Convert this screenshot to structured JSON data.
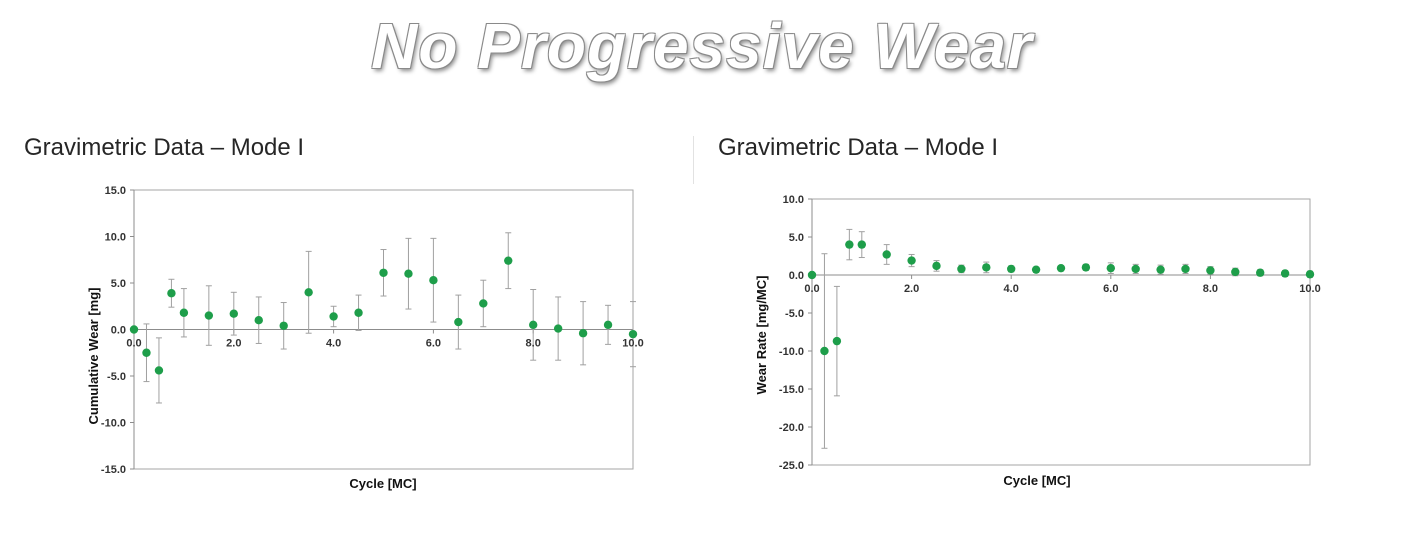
{
  "slide": {
    "title": "No Progressive Wear"
  },
  "chart_data": [
    {
      "type": "scatter",
      "heading": "Gravimetric Data – Mode I",
      "xlabel": "Cycle [MC]",
      "ylabel": "Cumulative Wear [mg]",
      "xlim": [
        0,
        10
      ],
      "ylim": [
        -15,
        15
      ],
      "x_ticks": [
        0,
        2,
        4,
        6,
        8,
        10
      ],
      "x_tick_labels": [
        "0.0",
        "2.0",
        "4.0",
        "6.0",
        "8.0",
        "10.0"
      ],
      "y_ticks": [
        15,
        10,
        5,
        0,
        -5,
        -10,
        -15
      ],
      "y_tick_labels": [
        "15.0",
        "10.0",
        "5.0",
        "0.0",
        "-5.0",
        "-10.0",
        "-15.0"
      ],
      "marker_color": "#1e9e4a",
      "errorbar_color": "#a0a0a0",
      "points": [
        {
          "x": 0.0,
          "y": 0.0,
          "err": 0.0
        },
        {
          "x": 0.25,
          "y": -2.5,
          "err": 3.1
        },
        {
          "x": 0.5,
          "y": -4.4,
          "err": 3.5
        },
        {
          "x": 0.75,
          "y": 3.9,
          "err": 1.5
        },
        {
          "x": 1.0,
          "y": 1.8,
          "err": 2.6
        },
        {
          "x": 1.5,
          "y": 1.5,
          "err": 3.2
        },
        {
          "x": 2.0,
          "y": 1.7,
          "err": 2.3
        },
        {
          "x": 2.5,
          "y": 1.0,
          "err": 2.5
        },
        {
          "x": 3.0,
          "y": 0.4,
          "err": 2.5
        },
        {
          "x": 3.5,
          "y": 4.0,
          "err": 4.4
        },
        {
          "x": 4.0,
          "y": 1.4,
          "err": 1.1
        },
        {
          "x": 4.5,
          "y": 1.8,
          "err": 1.9
        },
        {
          "x": 5.0,
          "y": 6.1,
          "err": 2.5
        },
        {
          "x": 5.5,
          "y": 6.0,
          "err": 3.8
        },
        {
          "x": 6.0,
          "y": 5.3,
          "err": 4.5
        },
        {
          "x": 6.5,
          "y": 0.8,
          "err": 2.9
        },
        {
          "x": 7.0,
          "y": 2.8,
          "err": 2.5
        },
        {
          "x": 7.5,
          "y": 7.4,
          "err": 3.0
        },
        {
          "x": 8.0,
          "y": 0.5,
          "err": 3.8
        },
        {
          "x": 8.5,
          "y": 0.1,
          "err": 3.4
        },
        {
          "x": 9.0,
          "y": -0.4,
          "err": 3.4
        },
        {
          "x": 9.5,
          "y": 0.5,
          "err": 2.1
        },
        {
          "x": 10.0,
          "y": -0.5,
          "err": 3.5
        }
      ]
    },
    {
      "type": "scatter",
      "heading": "Gravimetric Data – Mode I",
      "xlabel": "Cycle [MC]",
      "ylabel": "Wear Rate [mg/MC]",
      "xlim": [
        0,
        10
      ],
      "ylim": [
        -25,
        10
      ],
      "x_ticks": [
        0,
        2,
        4,
        6,
        8,
        10
      ],
      "x_tick_labels": [
        "0.0",
        "2.0",
        "4.0",
        "6.0",
        "8.0",
        "10.0"
      ],
      "y_ticks": [
        10,
        5,
        0,
        -5,
        -10,
        -15,
        -20,
        -25
      ],
      "y_tick_labels": [
        "10.0",
        "5.0",
        "0.0",
        "-5.0",
        "-10.0",
        "-15.0",
        "-20.0",
        "-25.0"
      ],
      "marker_color": "#1e9e4a",
      "errorbar_color": "#a0a0a0",
      "points": [
        {
          "x": 0.0,
          "y": 0.0,
          "err": 0.0
        },
        {
          "x": 0.25,
          "y": -10.0,
          "err": 12.8
        },
        {
          "x": 0.5,
          "y": -8.7,
          "err": 7.2
        },
        {
          "x": 0.75,
          "y": 4.0,
          "err": 2.0
        },
        {
          "x": 1.0,
          "y": 4.0,
          "err": 1.7
        },
        {
          "x": 1.5,
          "y": 2.7,
          "err": 1.3
        },
        {
          "x": 2.0,
          "y": 1.9,
          "err": 0.8
        },
        {
          "x": 2.5,
          "y": 1.2,
          "err": 0.7
        },
        {
          "x": 3.0,
          "y": 0.8,
          "err": 0.5
        },
        {
          "x": 3.5,
          "y": 1.0,
          "err": 0.7
        },
        {
          "x": 4.0,
          "y": 0.8,
          "err": 0.4
        },
        {
          "x": 4.5,
          "y": 0.7,
          "err": 0.3
        },
        {
          "x": 5.0,
          "y": 0.9,
          "err": 0.3
        },
        {
          "x": 5.5,
          "y": 1.0,
          "err": 0.4
        },
        {
          "x": 6.0,
          "y": 0.9,
          "err": 0.7
        },
        {
          "x": 6.5,
          "y": 0.8,
          "err": 0.6
        },
        {
          "x": 7.0,
          "y": 0.7,
          "err": 0.6
        },
        {
          "x": 7.5,
          "y": 0.8,
          "err": 0.6
        },
        {
          "x": 8.0,
          "y": 0.6,
          "err": 0.5
        },
        {
          "x": 8.5,
          "y": 0.4,
          "err": 0.5
        },
        {
          "x": 9.0,
          "y": 0.3,
          "err": 0.4
        },
        {
          "x": 9.5,
          "y": 0.2,
          "err": 0.4
        },
        {
          "x": 10.0,
          "y": 0.1,
          "err": 0.4
        }
      ]
    }
  ]
}
